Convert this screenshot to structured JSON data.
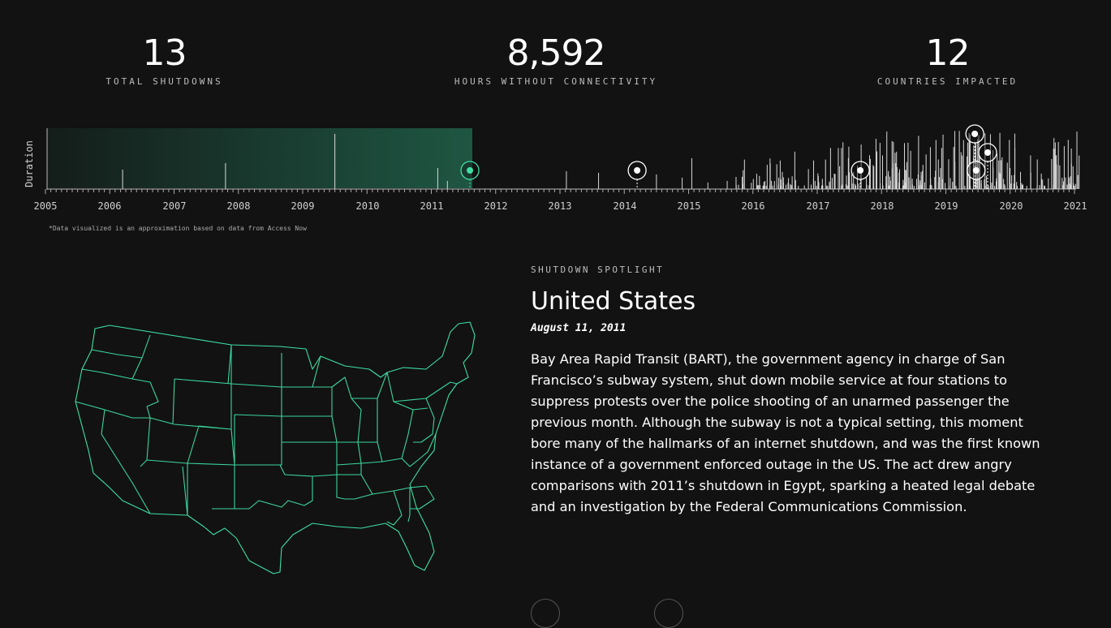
{
  "stats": [
    {
      "value": "13",
      "label": "TOTAL SHUTDOWNS"
    },
    {
      "value": "8,592",
      "label": "HOURS WITHOUT CONNECTIVITY"
    },
    {
      "value": "12",
      "label": "COUNTRIES IMPACTED"
    }
  ],
  "timeline": {
    "y_label": "Duration",
    "years": [
      "2005",
      "2006",
      "2007",
      "2008",
      "2009",
      "2010",
      "2011",
      "2012",
      "2013",
      "2014",
      "2015",
      "2016",
      "2017",
      "2018",
      "2019",
      "2020",
      "2021"
    ],
    "highlight_color": "#1f5a45",
    "accent_color": "#3ee0a4",
    "highlighted_dates": [
      2011.6,
      2014.2,
      2017.67,
      2019.45,
      2019.47,
      2019.65
    ],
    "footnote": "*Data visualized is an approximation based on data from Access Now"
  },
  "spotlight": {
    "kicker": "SHUTDOWN SPOTLIGHT",
    "country": "United States",
    "date": "August 11, 2011",
    "body": "Bay Area Rapid Transit (BART), the government agency in charge of San Francisco’s subway system, shut down mobile service at four stations to suppress protests over the police shooting of an unarmed passenger the previous month. Although the subway is not a typical setting, this moment bore many of the hallmarks of an internet shutdown, and was the first known instance of a government enforced outage in the US. The act drew angry comparisons with 2011’s shutdown in Egypt, sparking a heated legal debate and an investigation by the Federal Communications Commission."
  },
  "map": {
    "region": "united-states",
    "stroke_color": "#3ee0a4"
  }
}
